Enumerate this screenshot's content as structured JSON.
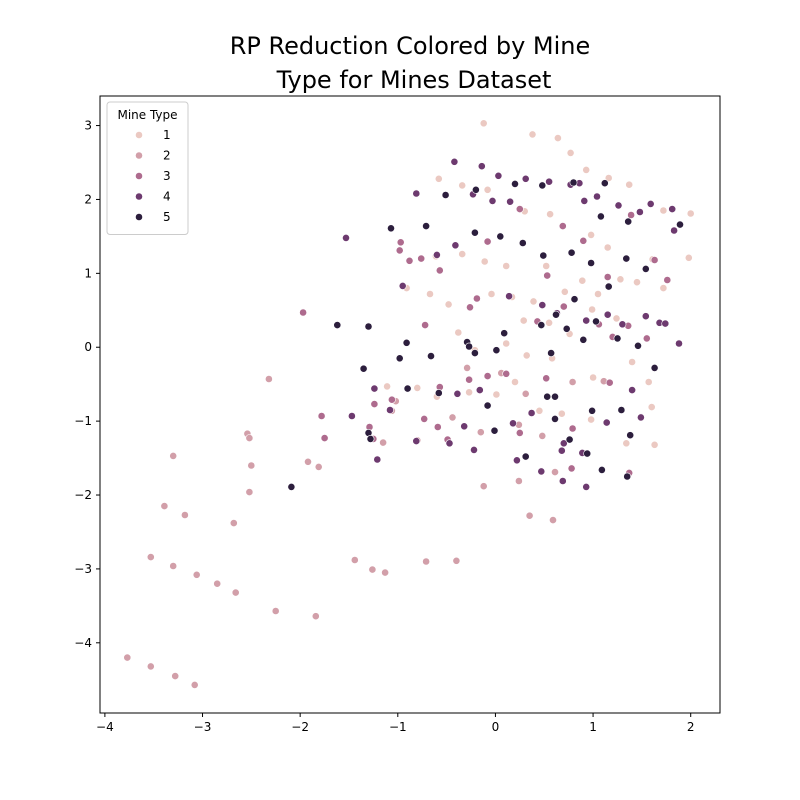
{
  "chart_data": {
    "type": "scatter",
    "title_lines": [
      "RP Reduction Colored by Mine",
      "Type for Mines Dataset"
    ],
    "xlim": [
      -4.05,
      2.3
    ],
    "ylim": [
      -4.95,
      3.4
    ],
    "x_ticks": [
      -4,
      -3,
      -2,
      -1,
      0,
      1,
      2
    ],
    "y_ticks": [
      -4,
      -3,
      -2,
      -1,
      0,
      1,
      2,
      3
    ],
    "legend": {
      "title": "Mine Type",
      "position": "top-left"
    },
    "grid": false,
    "series": [
      {
        "name": "1",
        "color": "#EBC9C2",
        "points": [
          [
            -0.12,
            3.03
          ],
          [
            0.38,
            2.88
          ],
          [
            0.64,
            2.83
          ],
          [
            0.77,
            2.63
          ],
          [
            0.93,
            2.4
          ],
          [
            1.16,
            2.29
          ],
          [
            1.37,
            2.2
          ],
          [
            -0.58,
            2.28
          ],
          [
            -0.34,
            2.19
          ],
          [
            -0.08,
            2.13
          ],
          [
            0.3,
            1.84
          ],
          [
            0.56,
            1.8
          ],
          [
            0.98,
            1.52
          ],
          [
            1.15,
            1.35
          ],
          [
            1.61,
            1.19
          ],
          [
            1.72,
            1.85
          ],
          [
            1.98,
            1.21
          ],
          [
            2.0,
            1.81
          ],
          [
            -0.91,
            0.8
          ],
          [
            -0.67,
            0.72
          ],
          [
            -0.61,
            1.23
          ],
          [
            -0.34,
            1.26
          ],
          [
            -0.11,
            1.16
          ],
          [
            0.11,
            1.1
          ],
          [
            0.39,
            0.62
          ],
          [
            0.55,
            0.33
          ],
          [
            0.71,
            0.75
          ],
          [
            0.89,
            0.9
          ],
          [
            1.05,
            0.72
          ],
          [
            1.28,
            0.92
          ],
          [
            1.45,
            0.88
          ],
          [
            1.72,
            0.8
          ],
          [
            -0.38,
            0.2
          ],
          [
            -0.21,
            -0.04
          ],
          [
            0.11,
            0.05
          ],
          [
            0.32,
            -0.11
          ],
          [
            0.58,
            -0.15
          ],
          [
            0.76,
            0.18
          ],
          [
            0.99,
            0.51
          ],
          [
            1.24,
            0.39
          ],
          [
            1.4,
            -0.2
          ],
          [
            1.57,
            -0.47
          ],
          [
            -1.11,
            -0.53
          ],
          [
            -0.8,
            -0.55
          ],
          [
            -0.6,
            -0.67
          ],
          [
            -0.27,
            -0.61
          ],
          [
            0.01,
            -0.64
          ],
          [
            0.2,
            -0.47
          ],
          [
            0.45,
            -0.86
          ],
          [
            0.68,
            -0.9
          ],
          [
            0.98,
            -0.98
          ],
          [
            1.0,
            -0.41
          ],
          [
            1.34,
            -1.3
          ],
          [
            1.6,
            -0.81
          ],
          [
            1.63,
            -1.32
          ],
          [
            0.17,
            0.68
          ],
          [
            -0.04,
            0.72
          ],
          [
            0.29,
            0.36
          ],
          [
            0.52,
            1.1
          ],
          [
            -0.48,
            0.58
          ]
        ]
      },
      {
        "name": "2",
        "color": "#D29FA9",
        "points": [
          [
            -3.77,
            -4.2
          ],
          [
            -3.53,
            -4.32
          ],
          [
            -3.28,
            -4.45
          ],
          [
            -3.08,
            -4.57
          ],
          [
            -3.53,
            -2.84
          ],
          [
            -3.3,
            -2.96
          ],
          [
            -3.06,
            -3.08
          ],
          [
            -2.85,
            -3.2
          ],
          [
            -2.66,
            -3.32
          ],
          [
            -2.25,
            -3.57
          ],
          [
            -1.84,
            -3.64
          ],
          [
            -3.39,
            -2.15
          ],
          [
            -3.18,
            -2.27
          ],
          [
            -3.3,
            -1.47
          ],
          [
            -2.68,
            -2.38
          ],
          [
            -2.5,
            -1.6
          ],
          [
            -2.52,
            -1.96
          ],
          [
            -2.54,
            -1.17
          ],
          [
            -2.52,
            -1.23
          ],
          [
            -2.32,
            -0.43
          ],
          [
            -1.92,
            -1.55
          ],
          [
            -1.81,
            -1.62
          ],
          [
            -1.44,
            -2.88
          ],
          [
            -1.26,
            -3.01
          ],
          [
            -1.13,
            -3.05
          ],
          [
            -0.71,
            -2.9
          ],
          [
            -0.4,
            -2.89
          ],
          [
            -0.12,
            -1.88
          ],
          [
            0.24,
            -1.81
          ],
          [
            0.35,
            -2.28
          ],
          [
            0.59,
            -2.34
          ],
          [
            0.61,
            -1.69
          ],
          [
            0.24,
            -1.05
          ],
          [
            0.48,
            -1.2
          ],
          [
            -0.8,
            -1.26
          ],
          [
            -1.02,
            -0.73
          ],
          [
            -0.44,
            -0.95
          ],
          [
            -0.15,
            -1.15
          ],
          [
            -0.29,
            -0.28
          ],
          [
            0.06,
            -0.35
          ],
          [
            0.31,
            -0.63
          ],
          [
            0.79,
            -0.47
          ],
          [
            1.11,
            -0.46
          ],
          [
            -1.06,
            -0.86
          ],
          [
            -1.15,
            -1.29
          ]
        ]
      },
      {
        "name": "3",
        "color": "#AE6B8E",
        "points": [
          [
            -1.97,
            0.47
          ],
          [
            -1.78,
            -0.93
          ],
          [
            -1.75,
            -1.23
          ],
          [
            -1.24,
            -0.77
          ],
          [
            -1.06,
            -0.71
          ],
          [
            -1.25,
            -1.24
          ],
          [
            -1.29,
            -1.08
          ],
          [
            -0.97,
            1.42
          ],
          [
            -0.98,
            1.31
          ],
          [
            -0.88,
            1.17
          ],
          [
            -0.76,
            1.2
          ],
          [
            -0.57,
            1.04
          ],
          [
            -0.72,
            0.3
          ],
          [
            -0.57,
            -0.54
          ],
          [
            -0.59,
            -1.08
          ],
          [
            -0.73,
            -0.97
          ],
          [
            -0.49,
            -1.25
          ],
          [
            -0.26,
            0.54
          ],
          [
            -0.19,
            0.66
          ],
          [
            -0.08,
            1.43
          ],
          [
            0.25,
            1.87
          ],
          [
            0.53,
            0.97
          ],
          [
            0.69,
            1.64
          ],
          [
            0.9,
            1.44
          ],
          [
            1.15,
            0.95
          ],
          [
            1.39,
            1.79
          ],
          [
            1.63,
            1.18
          ],
          [
            1.76,
            0.91
          ],
          [
            -0.27,
            -0.44
          ],
          [
            0.11,
            -0.36
          ],
          [
            0.52,
            -0.42
          ],
          [
            0.7,
            0.55
          ],
          [
            1.06,
            0.31
          ],
          [
            1.36,
            0.29
          ],
          [
            1.55,
            0.12
          ],
          [
            0.79,
            -1.1
          ],
          [
            1.17,
            -0.48
          ],
          [
            1.37,
            -1.7
          ],
          [
            0.78,
            -1.64
          ],
          [
            0.25,
            -1.16
          ],
          [
            -0.08,
            -0.39
          ],
          [
            1.2,
            0.14
          ],
          [
            0.43,
            0.35
          ]
        ]
      },
      {
        "name": "4",
        "color": "#6D3A6F",
        "points": [
          [
            -1.53,
            1.48
          ],
          [
            -1.47,
            -0.93
          ],
          [
            -1.21,
            -1.52
          ],
          [
            -1.24,
            -0.56
          ],
          [
            -1.08,
            -0.85
          ],
          [
            -0.95,
            0.83
          ],
          [
            -0.81,
            2.08
          ],
          [
            -0.6,
            1.25
          ],
          [
            -0.42,
            2.51
          ],
          [
            -0.41,
            1.38
          ],
          [
            -0.23,
            2.07
          ],
          [
            -0.14,
            2.45
          ],
          [
            0.03,
            2.32
          ],
          [
            -0.03,
            1.98
          ],
          [
            0.15,
            1.97
          ],
          [
            0.31,
            2.28
          ],
          [
            0.55,
            2.24
          ],
          [
            0.77,
            2.2
          ],
          [
            0.86,
            2.22
          ],
          [
            0.91,
            1.98
          ],
          [
            1.04,
            2.04
          ],
          [
            1.26,
            1.92
          ],
          [
            1.48,
            1.83
          ],
          [
            1.59,
            1.94
          ],
          [
            1.81,
            1.87
          ],
          [
            1.83,
            1.58
          ],
          [
            1.15,
            0.44
          ],
          [
            1.3,
            0.31
          ],
          [
            1.54,
            0.42
          ],
          [
            1.68,
            0.33
          ],
          [
            1.74,
            0.32
          ],
          [
            1.88,
            0.05
          ],
          [
            -0.16,
            -0.58
          ],
          [
            -0.39,
            -0.63
          ],
          [
            -0.32,
            -1.07
          ],
          [
            -0.22,
            -1.39
          ],
          [
            -0.81,
            -1.27
          ],
          [
            -0.47,
            -1.3
          ],
          [
            0.18,
            -1.03
          ],
          [
            0.22,
            -1.53
          ],
          [
            0.37,
            -0.89
          ],
          [
            0.47,
            -1.68
          ],
          [
            0.68,
            -1.4
          ],
          [
            0.69,
            -1.81
          ],
          [
            0.93,
            -1.89
          ],
          [
            0.89,
            -1.43
          ],
          [
            1.4,
            -0.58
          ],
          [
            1.14,
            -1.02
          ],
          [
            0.14,
            0.69
          ],
          [
            0.48,
            0.57
          ],
          [
            0.63,
            0.46
          ],
          [
            0.93,
            0.36
          ],
          [
            1.49,
            -0.95
          ],
          [
            0.7,
            -1.3
          ]
        ]
      },
      {
        "name": "5",
        "color": "#2C1E3D",
        "points": [
          [
            -2.09,
            -1.89
          ],
          [
            -1.62,
            0.3
          ],
          [
            -1.35,
            -0.29
          ],
          [
            -1.3,
            0.28
          ],
          [
            -1.3,
            -1.16
          ],
          [
            -1.28,
            -1.24
          ],
          [
            -1.07,
            1.61
          ],
          [
            -0.98,
            -0.15
          ],
          [
            -0.91,
            0.06
          ],
          [
            -0.9,
            -0.56
          ],
          [
            -0.71,
            1.64
          ],
          [
            -0.66,
            -0.12
          ],
          [
            -0.58,
            -0.62
          ],
          [
            -0.51,
            2.06
          ],
          [
            -0.21,
            1.55
          ],
          [
            -0.2,
            2.13
          ],
          [
            -0.29,
            0.07
          ],
          [
            -0.27,
            0.01
          ],
          [
            -0.21,
            -0.08
          ],
          [
            -0.08,
            -0.79
          ],
          [
            -0.01,
            -1.13
          ],
          [
            0.01,
            -0.04
          ],
          [
            0.05,
            1.5
          ],
          [
            0.09,
            0.19
          ],
          [
            0.2,
            2.21
          ],
          [
            0.28,
            1.41
          ],
          [
            0.31,
            -1.48
          ],
          [
            0.47,
            0.3
          ],
          [
            0.49,
            1.24
          ],
          [
            0.48,
            2.19
          ],
          [
            0.57,
            -0.08
          ],
          [
            0.53,
            -0.67
          ],
          [
            0.61,
            -0.67
          ],
          [
            0.61,
            -0.97
          ],
          [
            0.73,
            0.25
          ],
          [
            0.76,
            -1.25
          ],
          [
            0.78,
            1.28
          ],
          [
            0.8,
            2.23
          ],
          [
            0.9,
            0.1
          ],
          [
            0.94,
            -1.44
          ],
          [
            0.98,
            1.14
          ],
          [
            0.99,
            -0.86
          ],
          [
            1.08,
            1.77
          ],
          [
            1.12,
            2.22
          ],
          [
            1.16,
            0.82
          ],
          [
            1.09,
            -1.66
          ],
          [
            1.25,
            0.12
          ],
          [
            1.29,
            -0.85
          ],
          [
            1.34,
            1.2
          ],
          [
            1.35,
            -1.75
          ],
          [
            1.36,
            1.7
          ],
          [
            1.38,
            -1.19
          ],
          [
            1.46,
            0.02
          ],
          [
            1.54,
            1.06
          ],
          [
            1.63,
            -0.28
          ],
          [
            1.89,
            1.66
          ],
          [
            0.62,
            0.44
          ],
          [
            0.81,
            0.65
          ],
          [
            1.03,
            0.35
          ]
        ]
      }
    ]
  }
}
